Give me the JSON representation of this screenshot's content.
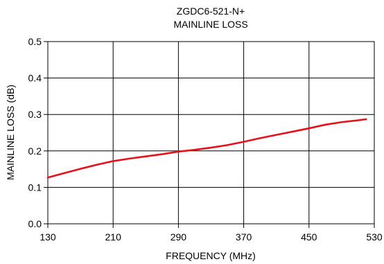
{
  "chart_data": {
    "type": "line",
    "title": "ZGDC6-521-N+",
    "subtitle": "MAINLINE LOSS",
    "xlabel": "FREQUENCY (MHz)",
    "ylabel": "MAINLINE LOSS (dB)",
    "xlim": [
      130,
      530
    ],
    "ylim": [
      0.0,
      0.5
    ],
    "x_ticks": [
      130,
      210,
      290,
      370,
      450,
      530
    ],
    "x_tick_labels": [
      "130",
      "210",
      "290",
      "370",
      "450",
      "530"
    ],
    "y_ticks": [
      0.0,
      0.1,
      0.2,
      0.3,
      0.4,
      0.5
    ],
    "y_tick_labels": [
      "0.0",
      "0.1",
      "0.2",
      "0.3",
      "0.4",
      "0.5"
    ],
    "grid": true,
    "series": [
      {
        "color": "#e8101a",
        "x": [
          130,
          150,
          170,
          190,
          210,
          230,
          250,
          270,
          290,
          310,
          330,
          350,
          370,
          390,
          410,
          430,
          450,
          470,
          490,
          510,
          520
        ],
        "y": [
          0.127,
          0.139,
          0.151,
          0.162,
          0.172,
          0.179,
          0.185,
          0.191,
          0.198,
          0.203,
          0.209,
          0.216,
          0.225,
          0.235,
          0.244,
          0.253,
          0.262,
          0.272,
          0.279,
          0.284,
          0.287
        ]
      }
    ]
  }
}
